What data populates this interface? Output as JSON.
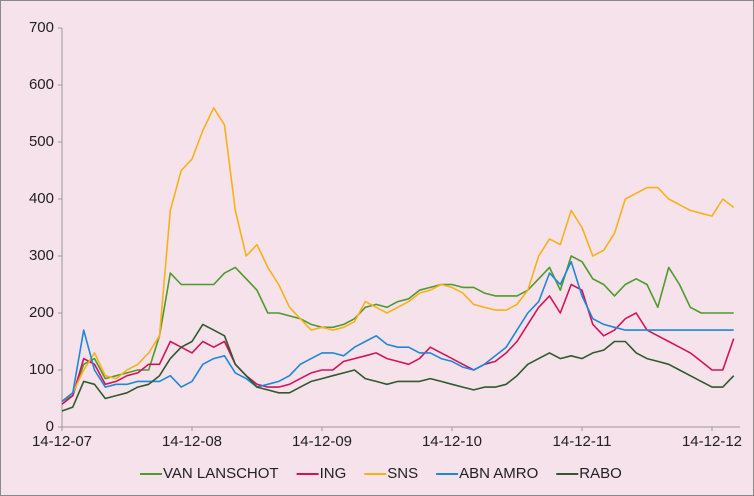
{
  "chart_data": {
    "type": "line",
    "x": [
      "14-12-07",
      "14-01-08",
      "14-02-08",
      "14-03-08",
      "14-04-08",
      "14-05-08",
      "14-06-08",
      "14-07-08",
      "14-08-08",
      "14-09-08",
      "14-10-08",
      "14-11-08",
      "14-12-08",
      "14-01-09",
      "14-02-09",
      "14-03-09",
      "14-04-09",
      "14-05-09",
      "14-06-09",
      "14-07-09",
      "14-08-09",
      "14-09-09",
      "14-10-09",
      "14-11-09",
      "14-12-09",
      "14-01-10",
      "14-02-10",
      "14-03-10",
      "14-04-10",
      "14-05-10",
      "14-06-10",
      "14-07-10",
      "14-08-10",
      "14-09-10",
      "14-10-10",
      "14-11-10",
      "14-12-10",
      "14-01-11",
      "14-02-11",
      "14-03-11",
      "14-04-11",
      "14-05-11",
      "14-06-11",
      "14-07-11",
      "14-08-11",
      "14-09-11",
      "14-10-11",
      "14-11-11",
      "14-12-11",
      "14-01-12",
      "14-02-12",
      "14-03-12",
      "14-04-12",
      "14-05-12",
      "14-06-12",
      "14-07-12",
      "14-08-12",
      "14-09-12",
      "14-10-12",
      "14-11-12",
      "14-12-12",
      "14-01-13",
      "14-02-13"
    ],
    "series": [
      {
        "name": "VAN LANSCHOT",
        "color": "#4e9a2c",
        "values": [
          45,
          55,
          110,
          120,
          85,
          90,
          95,
          100,
          100,
          160,
          270,
          250,
          250,
          250,
          250,
          270,
          280,
          260,
          240,
          200,
          200,
          195,
          190,
          180,
          175,
          175,
          180,
          190,
          210,
          215,
          210,
          220,
          225,
          240,
          245,
          250,
          250,
          245,
          245,
          235,
          230,
          230,
          230,
          240,
          260,
          280,
          240,
          300,
          290,
          260,
          250,
          230,
          250,
          260,
          250,
          210,
          280,
          250,
          210,
          200,
          200,
          200,
          200
        ]
      },
      {
        "name": "ING",
        "color": "#d4145a",
        "values": [
          40,
          55,
          120,
          110,
          75,
          80,
          90,
          95,
          110,
          110,
          150,
          140,
          130,
          150,
          140,
          150,
          110,
          90,
          75,
          70,
          70,
          75,
          85,
          95,
          100,
          100,
          115,
          120,
          125,
          130,
          120,
          115,
          110,
          120,
          140,
          130,
          120,
          110,
          100,
          110,
          115,
          130,
          150,
          180,
          210,
          230,
          200,
          250,
          240,
          180,
          160,
          170,
          190,
          200,
          170,
          160,
          150,
          140,
          130,
          115,
          100,
          100,
          155
        ]
      },
      {
        "name": "SNS",
        "color": "#f7b21b",
        "values": [
          45,
          60,
          100,
          130,
          90,
          85,
          100,
          110,
          130,
          160,
          380,
          450,
          470,
          520,
          560,
          530,
          380,
          300,
          320,
          280,
          250,
          210,
          190,
          170,
          175,
          170,
          175,
          185,
          220,
          210,
          200,
          210,
          220,
          235,
          240,
          250,
          245,
          235,
          215,
          210,
          205,
          205,
          215,
          240,
          300,
          330,
          320,
          380,
          350,
          300,
          310,
          340,
          400,
          410,
          420,
          420,
          400,
          390,
          380,
          375,
          370,
          400,
          385
        ]
      },
      {
        "name": "ABN AMRO",
        "color": "#1e88d6",
        "values": [
          45,
          60,
          170,
          100,
          70,
          75,
          75,
          80,
          80,
          80,
          90,
          70,
          80,
          110,
          120,
          125,
          95,
          85,
          70,
          75,
          80,
          90,
          110,
          120,
          130,
          130,
          125,
          140,
          150,
          160,
          145,
          140,
          140,
          130,
          130,
          120,
          115,
          105,
          100,
          110,
          125,
          140,
          170,
          200,
          220,
          270,
          250,
          290,
          230,
          190,
          180,
          175,
          170,
          170,
          170,
          170,
          170,
          170,
          170,
          170,
          170,
          170,
          170
        ]
      },
      {
        "name": "RABO",
        "color": "#2e5a2e",
        "values": [
          28,
          35,
          80,
          75,
          50,
          55,
          60,
          70,
          75,
          90,
          120,
          140,
          150,
          180,
          170,
          160,
          110,
          90,
          70,
          65,
          60,
          60,
          70,
          80,
          85,
          90,
          95,
          100,
          85,
          80,
          75,
          80,
          80,
          80,
          85,
          80,
          75,
          70,
          65,
          70,
          70,
          75,
          90,
          110,
          120,
          130,
          120,
          125,
          120,
          130,
          135,
          150,
          150,
          130,
          120,
          115,
          110,
          100,
          90,
          80,
          70,
          70,
          90
        ]
      }
    ],
    "xticks": [
      "14-12-07",
      "14-12-08",
      "14-12-09",
      "14-12-10",
      "14-12-11",
      "14-12-12"
    ],
    "ylim": [
      0,
      700
    ],
    "yticks": [
      0,
      100,
      200,
      300,
      400,
      500,
      600,
      700
    ],
    "legend": "bottom"
  }
}
